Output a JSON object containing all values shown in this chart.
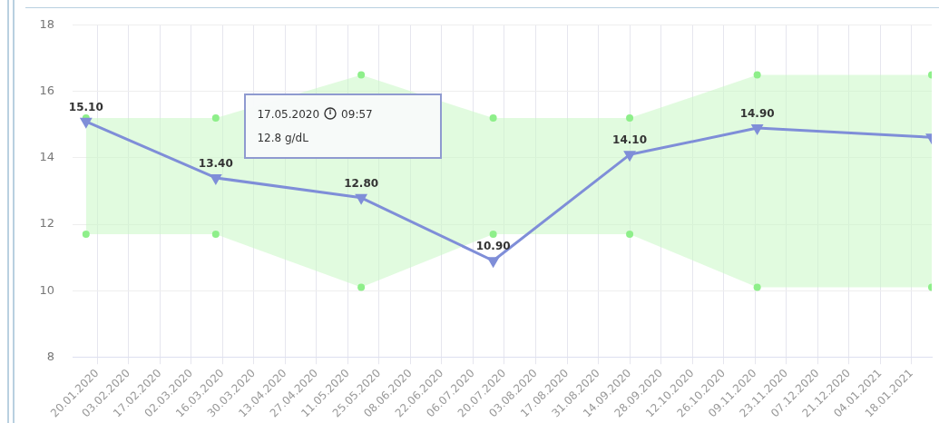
{
  "chart_data": {
    "type": "line",
    "x": [
      "2020-01-15",
      "2020-03-13",
      "2020-05-17",
      "2020-07-15",
      "2020-09-14",
      "2020-11-10",
      "2021-01-27"
    ],
    "series": [
      {
        "color": "#7f8ed8",
        "marker": "triangle",
        "values": [
          15.1,
          13.4,
          12.8,
          10.9,
          14.1,
          14.9,
          14.62
        ],
        "value_labels": [
          "15.10",
          "13.40",
          "12.80",
          "10.90",
          "14.10",
          "14.90",
          null
        ],
        "lower": [
          11.7,
          11.7,
          10.1,
          11.7,
          11.7,
          10.1,
          10.1
        ],
        "upper": [
          15.2,
          15.2,
          16.5,
          15.2,
          15.2,
          16.5,
          16.5
        ]
      },
      {
        "type": "scatter",
        "marker": "circle",
        "color": "#8eef8a",
        "values": [
          15.2,
          15.2,
          16.5,
          15.2,
          15.2,
          16.5,
          16.5
        ]
      },
      {
        "type": "scatter",
        "marker": "circle",
        "color": "#8eef8a",
        "values": [
          11.7,
          11.7,
          10.1,
          11.7,
          11.7,
          10.1,
          10.1
        ]
      }
    ],
    "xlim": [
      "2020-01-09",
      "2021-01-27"
    ],
    "xticks": [
      {
        "value": "2020-01-20",
        "label": "20.01.2020"
      },
      {
        "value": "2020-02-03",
        "label": "03.02.2020"
      },
      {
        "value": "2020-02-17",
        "label": "17.02.2020"
      },
      {
        "value": "2020-03-02",
        "label": "02.03.2020"
      },
      {
        "value": "2020-03-16",
        "label": "16.03.2020"
      },
      {
        "value": "2020-03-30",
        "label": "30.03.2020"
      },
      {
        "value": "2020-04-13",
        "label": "13.04.2020"
      },
      {
        "value": "2020-04-27",
        "label": "27.04.2020"
      },
      {
        "value": "2020-05-11",
        "label": "11.05.2020"
      },
      {
        "value": "2020-05-25",
        "label": "25.05.2020"
      },
      {
        "value": "2020-06-08",
        "label": "08.06.2020"
      },
      {
        "value": "2020-06-22",
        "label": "22.06.2020"
      },
      {
        "value": "2020-07-06",
        "label": "06.07.2020"
      },
      {
        "value": "2020-07-20",
        "label": "20.07.2020"
      },
      {
        "value": "2020-08-03",
        "label": "03.08.2020"
      },
      {
        "value": "2020-08-17",
        "label": "17.08.2020"
      },
      {
        "value": "2020-08-31",
        "label": "31.08.2020"
      },
      {
        "value": "2020-09-14",
        "label": "14.09.2020"
      },
      {
        "value": "2020-09-28",
        "label": "28.09.2020"
      },
      {
        "value": "2020-10-12",
        "label": "12.10.2020"
      },
      {
        "value": "2020-10-26",
        "label": "26.10.2020"
      },
      {
        "value": "2020-11-09",
        "label": "09.11.2020"
      },
      {
        "value": "2020-11-23",
        "label": "23.11.2020"
      },
      {
        "value": "2020-12-07",
        "label": "07.12.2020"
      },
      {
        "value": "2020-12-21",
        "label": "21.12.2020"
      },
      {
        "value": "2021-01-04",
        "label": "04.01.2021"
      },
      {
        "value": "2021-01-18",
        "label": "18.01.2021"
      }
    ],
    "ylim": [
      8,
      18
    ],
    "yticks": [
      8,
      10,
      12,
      14,
      16,
      18
    ],
    "grid": true,
    "line_style": "solid",
    "annotations": [
      "17.05.2020",
      "09:57",
      "12.8 g/dL"
    ]
  }
}
